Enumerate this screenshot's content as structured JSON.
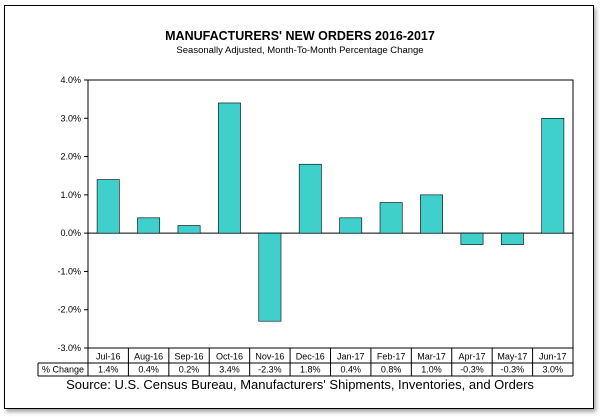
{
  "colors": {
    "bar": "#40d0cc",
    "bar_stroke": "#000000",
    "grid": "#000000"
  },
  "chart_data": {
    "type": "bar",
    "title": "MANUFACTURERS' NEW ORDERS 2016-2017",
    "subtitle": "Seasonally Adjusted,  Month-To-Month  Percentage Change",
    "categories": [
      "Jul-16",
      "Aug-16",
      "Sep-16",
      "Oct-16",
      "Nov-16",
      "Dec-16",
      "Jan-17",
      "Feb-17",
      "Mar-17",
      "Apr-17",
      "May-17",
      "Jun-17"
    ],
    "values": [
      1.4,
      0.4,
      0.2,
      3.4,
      -2.3,
      1.8,
      0.4,
      0.8,
      1.0,
      -0.3,
      -0.3,
      3.0
    ],
    "value_labels": [
      "1.4%",
      "0.4%",
      "0.2%",
      "3.4%",
      "-2.3%",
      "1.8%",
      "0.4%",
      "0.8%",
      "1.0%",
      "-0.3%",
      "-0.3%",
      "3.0%"
    ],
    "y_ticks": [
      4.0,
      3.0,
      2.0,
      1.0,
      0.0,
      -1.0,
      -2.0,
      -3.0
    ],
    "y_tick_labels": [
      "4.0%",
      "3.0%",
      "2.0%",
      "1.0%",
      "0.0%",
      "-1.0%",
      "-2.0%",
      "-3.0%"
    ],
    "ylim": [
      -3.0,
      4.0
    ],
    "row_header": "% Change",
    "source": "Source: U.S. Census Bureau, Manufacturers' Shipments, Inventories, and Orders"
  }
}
